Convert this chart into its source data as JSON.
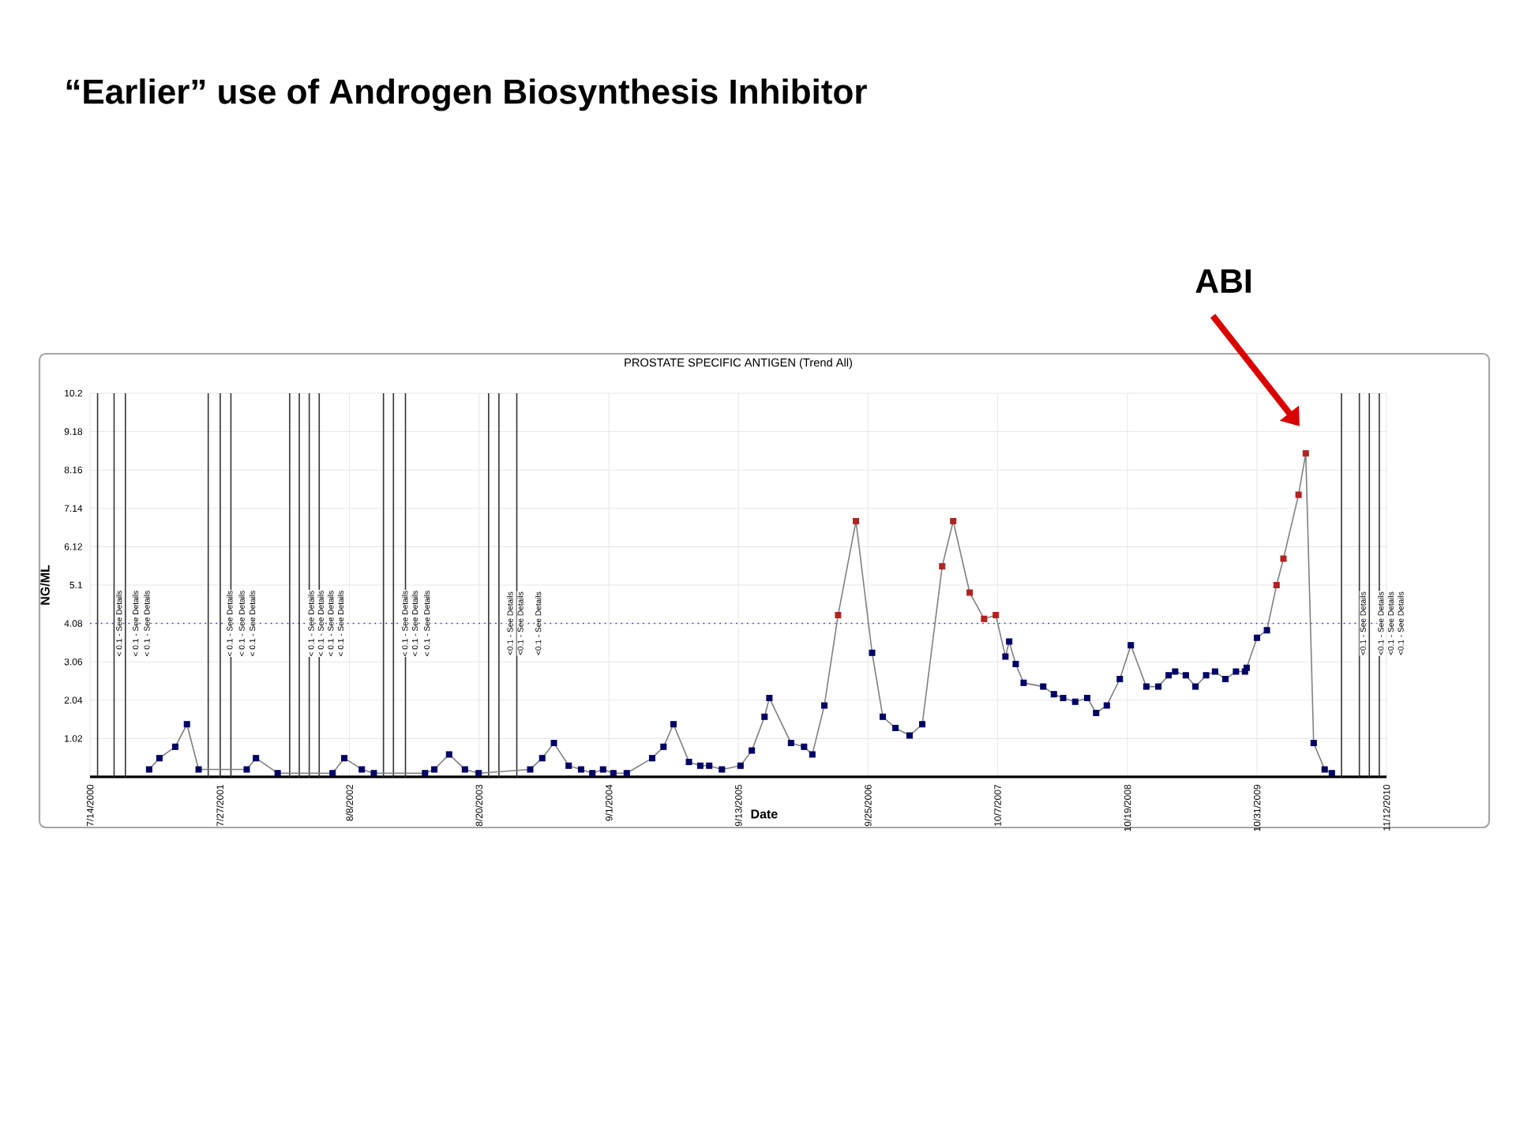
{
  "chart_data": {
    "type": "line",
    "title": "“Earlier” use of Androgen Biosynthesis Inhibitor",
    "subtitle": "PROSTATE SPECIFIC ANTIGEN (Trend All)",
    "xlabel": "Date",
    "ylabel": "NG/ML",
    "x": [
      "2001-01-02",
      "2001-02-01",
      "2001-03-19",
      "2001-04-22",
      "2001-05-26",
      "2001-10-13",
      "2001-11-09",
      "2002-01-11",
      "2002-06-20",
      "2002-07-24",
      "2002-09-13",
      "2002-10-18",
      "2003-03-16",
      "2003-04-12",
      "2003-05-25",
      "2003-07-10",
      "2003-08-19",
      "2004-01-16",
      "2004-02-20",
      "2004-03-25",
      "2004-05-07",
      "2004-06-12",
      "2004-07-15",
      "2004-08-15",
      "2004-09-14",
      "2004-10-23",
      "2005-01-05",
      "2005-02-07",
      "2005-03-08",
      "2005-04-22",
      "2005-05-25",
      "2005-06-20",
      "2005-07-27",
      "2005-09-19",
      "2005-10-22",
      "2005-11-28",
      "2005-12-12",
      "2006-02-13",
      "2006-03-23",
      "2006-04-16",
      "2006-05-21",
      "2006-06-30",
      "2006-08-21",
      "2006-10-07",
      "2006-11-07",
      "2006-12-14",
      "2007-01-24",
      "2007-03-02",
      "2007-04-29",
      "2007-05-31",
      "2007-07-18",
      "2007-08-29",
      "2007-10-02",
      "2007-10-30",
      "2007-11-10",
      "2007-11-29",
      "2007-12-22",
      "2008-02-17",
      "2008-03-19",
      "2008-04-15",
      "2008-05-20",
      "2008-06-24",
      "2008-07-20",
      "2008-08-20",
      "2008-09-27",
      "2008-10-29",
      "2008-12-13",
      "2009-01-17",
      "2009-02-16",
      "2009-03-07",
      "2009-04-07",
      "2009-05-05",
      "2009-06-05",
      "2009-07-01",
      "2009-07-31",
      "2009-08-31",
      "2009-09-26",
      "2009-10-01",
      "2009-10-31",
      "2009-11-29",
      "2009-12-27",
      "2010-01-16",
      "2010-03-01",
      "2010-03-22",
      "2010-04-14",
      "2010-05-16",
      "2010-06-06"
    ],
    "series": [
      {
        "color": "#808080",
        "colors": [
          "#000066",
          "#000066",
          "#000066",
          "#000066",
          "#000066",
          "#000066",
          "#000066",
          "#000066",
          "#000066",
          "#000066",
          "#000066",
          "#000066",
          "#000066",
          "#000066",
          "#000066",
          "#000066",
          "#000066",
          "#000066",
          "#000066",
          "#000066",
          "#000066",
          "#000066",
          "#000066",
          "#000066",
          "#000066",
          "#000066",
          "#000066",
          "#000066",
          "#000066",
          "#000066",
          "#000066",
          "#000066",
          "#000066",
          "#000066",
          "#000066",
          "#000066",
          "#000066",
          "#000066",
          "#000066",
          "#000066",
          "#000066",
          "#b22222",
          "#b22222",
          "#000066",
          "#000066",
          "#000066",
          "#000066",
          "#000066",
          "#b22222",
          "#b22222",
          "#b22222",
          "#b22222",
          "#b22222",
          "#000066",
          "#000066",
          "#000066",
          "#000066",
          "#000066",
          "#000066",
          "#000066",
          "#000066",
          "#000066",
          "#000066",
          "#000066",
          "#000066",
          "#000066",
          "#000066",
          "#000066",
          "#000066",
          "#000066",
          "#000066",
          "#000066",
          "#000066",
          "#000066",
          "#000066",
          "#000066",
          "#000066",
          "#000066",
          "#000066",
          "#000066",
          "#b22222",
          "#b22222",
          "#b22222",
          "#b22222",
          "#000066",
          "#000066",
          "#000066"
        ],
        "values": [
          0.2,
          0.5,
          0.8,
          1.4,
          0.2,
          0.2,
          0.5,
          0.1,
          0.1,
          0.5,
          0.2,
          0.1,
          0.1,
          0.2,
          0.6,
          0.2,
          0.1,
          0.2,
          0.5,
          0.9,
          0.3,
          0.2,
          0.1,
          0.2,
          0.1,
          0.1,
          0.5,
          0.8,
          1.4,
          0.4,
          0.3,
          0.3,
          0.2,
          0.3,
          0.7,
          1.6,
          2.1,
          0.9,
          0.8,
          0.6,
          1.9,
          4.3,
          6.8,
          3.3,
          1.6,
          1.3,
          1.1,
          1.4,
          5.6,
          6.8,
          4.9,
          4.2,
          4.3,
          3.2,
          3.6,
          3.0,
          2.5,
          2.4,
          2.2,
          2.1,
          2.0,
          2.1,
          1.7,
          1.9,
          2.6,
          3.5,
          2.4,
          2.4,
          2.7,
          2.8,
          2.7,
          2.4,
          2.7,
          2.8,
          2.6,
          2.8,
          2.8,
          2.9,
          3.7,
          3.9,
          5.1,
          5.8,
          7.5,
          8.6,
          0.9,
          0.2,
          0.1
        ]
      }
    ],
    "xlim": [
      "2000-07-14",
      "2010-11-12"
    ],
    "xticks": [
      {
        "value": "2000-07-14",
        "label": "7/14/2000"
      },
      {
        "value": "2001-07-27",
        "label": "7/27/2001"
      },
      {
        "value": "2002-08-08",
        "label": "8/8/2002"
      },
      {
        "value": "2003-08-20",
        "label": "8/20/2003"
      },
      {
        "value": "2004-09-01",
        "label": "9/1/2004"
      },
      {
        "value": "2005-09-13",
        "label": "9/13/2005"
      },
      {
        "value": "2006-09-25",
        "label": "9/25/2006"
      },
      {
        "value": "2007-10-07",
        "label": "10/7/2007"
      },
      {
        "value": "2008-10-19",
        "label": "10/19/2008"
      },
      {
        "value": "2009-10-31",
        "label": "10/31/2009"
      },
      {
        "value": "2010-11-12",
        "label": "11/12/2010"
      }
    ],
    "ylim": [
      0,
      10.2
    ],
    "yticks": [
      1.02,
      2.04,
      3.06,
      4.08,
      5.1,
      6.12,
      7.14,
      8.16,
      9.18,
      10.2
    ],
    "grid": true,
    "marker": "square",
    "line_style": "solid",
    "ref_lines": [
      {
        "axis": "y",
        "value": 4.08,
        "color": "#3333cc",
        "line_style": "dotted"
      },
      {
        "axis": "x",
        "value": "2000-08-05",
        "label": "< 0.1 - See Details",
        "color": "#333333"
      },
      {
        "axis": "x",
        "value": "2000-09-22",
        "label": "< 0.1 - See Details",
        "color": "#333333"
      },
      {
        "axis": "x",
        "value": "2000-10-25",
        "label": "< 0.1 - See Details",
        "color": "#333333"
      },
      {
        "axis": "x",
        "value": "2001-06-23",
        "label": "< 0.1 - See Details",
        "color": "#333333"
      },
      {
        "axis": "x",
        "value": "2001-07-28",
        "label": "< 0.1 - See Details",
        "color": "#333333"
      },
      {
        "axis": "x",
        "value": "2001-08-28",
        "label": "< 0.1 - See Details",
        "color": "#333333"
      },
      {
        "axis": "x",
        "value": "2002-02-15",
        "label": "< 0.1 - See Details",
        "color": "#333333"
      },
      {
        "axis": "x",
        "value": "2002-03-15",
        "label": "< 0.1 - See Details",
        "color": "#333333"
      },
      {
        "axis": "x",
        "value": "2002-04-13",
        "label": "< 0.1 - See Details",
        "color": "#333333"
      },
      {
        "axis": "x",
        "value": "2002-05-12",
        "label": "< 0.1 - See Details",
        "color": "#333333"
      },
      {
        "axis": "x",
        "value": "2002-11-15",
        "label": "< 0.1 - See Details",
        "color": "#333333"
      },
      {
        "axis": "x",
        "value": "2002-12-14",
        "label": "< 0.1 - See Details",
        "color": "#333333"
      },
      {
        "axis": "x",
        "value": "2003-01-18",
        "label": "< 0.1 - See Details",
        "color": "#333333"
      },
      {
        "axis": "x",
        "value": "2003-09-17",
        "label": "<0.1 - See Details",
        "color": "#333333"
      },
      {
        "axis": "x",
        "value": "2003-10-17",
        "label": "<0.1 - See Details",
        "color": "#333333"
      },
      {
        "axis": "x",
        "value": "2003-12-08",
        "label": "<0.1 - See Details",
        "color": "#333333"
      },
      {
        "axis": "x",
        "value": "2010-07-04",
        "label": "<0.1 - See Details",
        "color": "#333333"
      },
      {
        "axis": "x",
        "value": "2010-08-25",
        "label": "<0.1 - See Details",
        "color": "#333333"
      },
      {
        "axis": "x",
        "value": "2010-09-23",
        "label": "<0.1 - See Details",
        "color": "#333333"
      },
      {
        "axis": "x",
        "value": "2010-10-22",
        "label": "<0.1 - See Details",
        "color": "#333333"
      }
    ],
    "annotations": [
      "ABI"
    ]
  }
}
